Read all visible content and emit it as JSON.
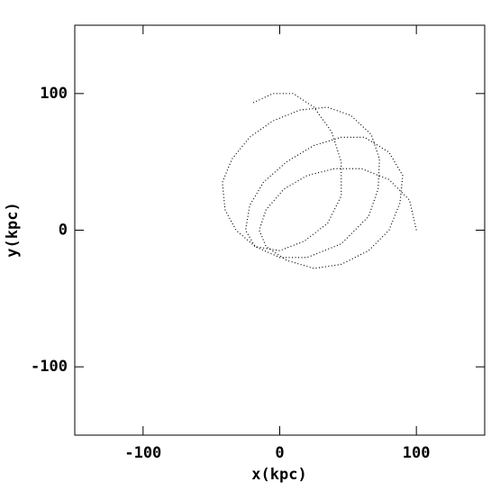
{
  "chart_data": {
    "type": "line",
    "xlabel": "x(kpc)",
    "ylabel": "y(kpc)",
    "xlim": [
      -150,
      150
    ],
    "ylim": [
      -150,
      150
    ],
    "xticks": [
      -100,
      0,
      100
    ],
    "yticks": [
      -100,
      0,
      100
    ],
    "color": "#000000",
    "x": [
      100,
      95,
      80,
      60,
      40,
      20,
      3,
      -10,
      -15,
      -10,
      5,
      25,
      45,
      65,
      80,
      88,
      90,
      80,
      62,
      45,
      25,
      5,
      -12,
      -22,
      -25,
      -18,
      0,
      20,
      45,
      65,
      72,
      73,
      67,
      52,
      35,
      15,
      -5,
      -22,
      -35,
      -42,
      -40,
      -32,
      -18,
      0,
      18,
      35,
      45,
      45,
      38,
      25,
      10,
      -5,
      -20
    ],
    "y": [
      0,
      22,
      37,
      45,
      45,
      40,
      30,
      15,
      0,
      -12,
      -22,
      -28,
      -25,
      -15,
      0,
      20,
      40,
      57,
      68,
      68,
      62,
      50,
      35,
      18,
      0,
      -12,
      -20,
      -20,
      -10,
      10,
      30,
      52,
      70,
      84,
      90,
      88,
      80,
      68,
      52,
      35,
      15,
      0,
      -12,
      -15,
      -8,
      5,
      25,
      50,
      72,
      90,
      100,
      100,
      93
    ]
  }
}
